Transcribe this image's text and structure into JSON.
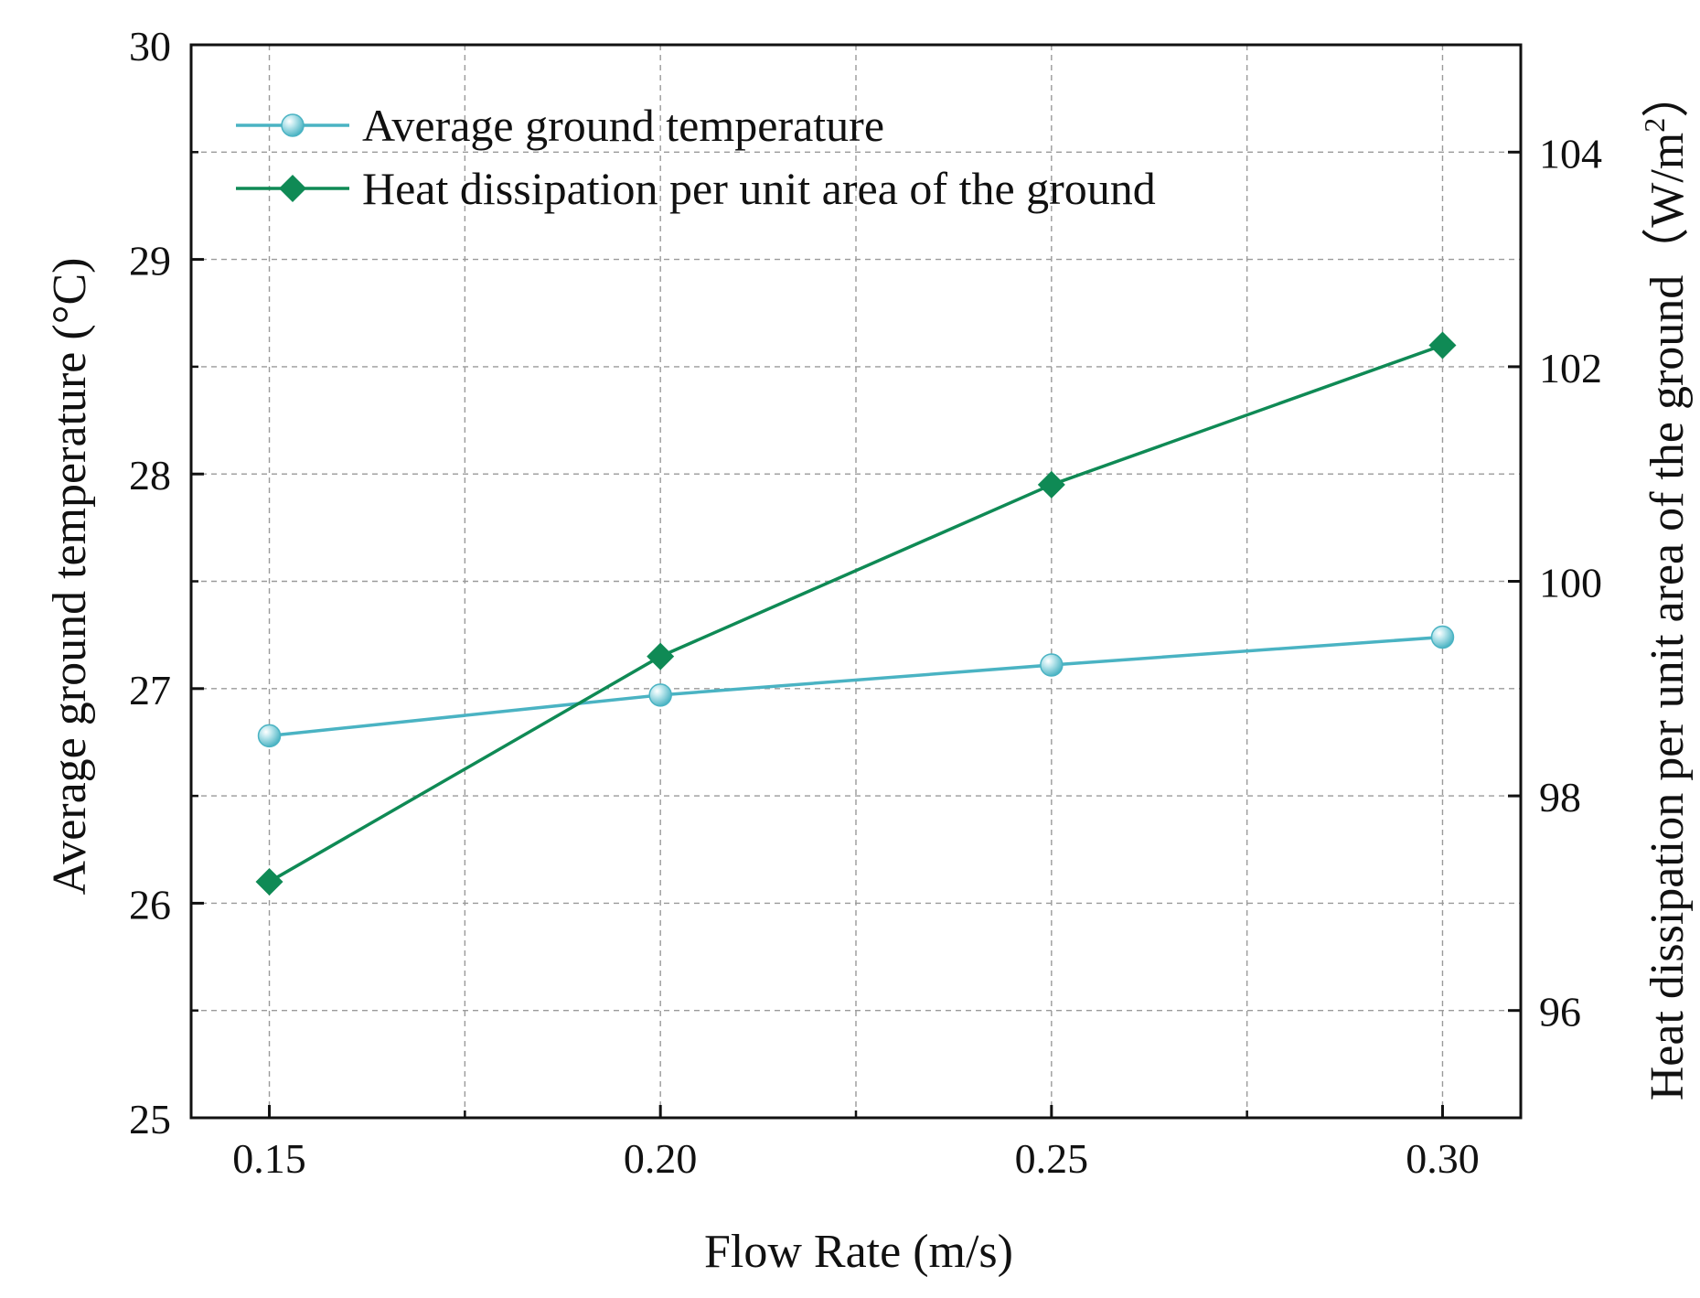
{
  "chart_data": {
    "type": "line",
    "x": [
      0.15,
      0.2,
      0.25,
      0.3
    ],
    "x_tick_labels": [
      "0.15",
      "0.20",
      "0.25",
      "0.30"
    ],
    "xlim": [
      0.14,
      0.31
    ],
    "xlabel": "Flow Rate (m/s)",
    "y_left": {
      "label": "Average ground temperature (°C)",
      "lim": [
        25,
        30
      ],
      "ticks": [
        25,
        26,
        27,
        28,
        29,
        30
      ],
      "tick_labels": [
        "25",
        "26",
        "27",
        "28",
        "29",
        "30"
      ]
    },
    "y_right": {
      "label_main": "Heat dissipation per unit area of the ground（W/m",
      "label_sup": "2",
      "label_close": "）",
      "lim": [
        95,
        105
      ],
      "ticks": [
        96,
        98,
        100,
        102,
        104
      ],
      "tick_labels": [
        "96",
        "98",
        "100",
        "102",
        "104"
      ]
    },
    "grid": true,
    "legend_position": "top-left",
    "series": [
      {
        "name": "Average ground temperature",
        "axis": "left",
        "marker": "circle",
        "color": "#4ab3c3",
        "values": [
          26.78,
          26.97,
          27.11,
          27.24
        ]
      },
      {
        "name": "Heat dissipation per unit area of the ground",
        "axis": "right",
        "marker": "diamond",
        "color": "#0f8a55",
        "values": [
          97.2,
          99.3,
          100.9,
          102.2
        ]
      }
    ]
  }
}
